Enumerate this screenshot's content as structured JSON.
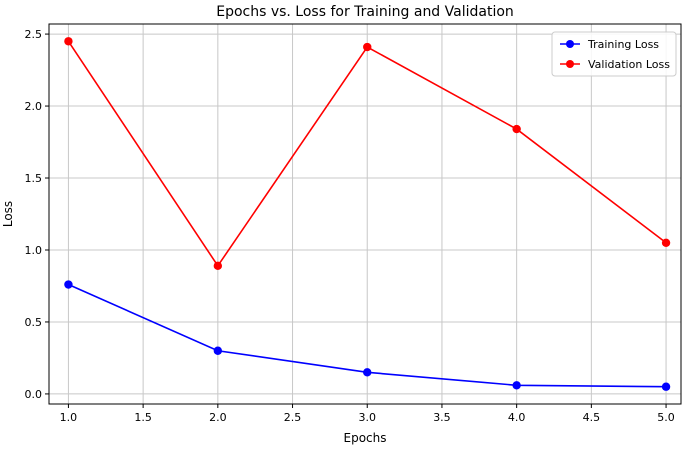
{
  "chart_data": {
    "type": "line",
    "title": "Epochs vs. Loss for Training and Validation",
    "xlabel": "Epochs",
    "ylabel": "Loss",
    "x": [
      1.0,
      2.0,
      3.0,
      4.0,
      5.0
    ],
    "xlim": [
      0.87,
      5.1
    ],
    "ylim": [
      -0.07,
      2.57
    ],
    "xticks": [
      "1.0",
      "1.5",
      "2.0",
      "2.5",
      "3.0",
      "3.5",
      "4.0",
      "4.5",
      "5.0"
    ],
    "yticks": [
      "0.0",
      "0.5",
      "1.0",
      "1.5",
      "2.0",
      "2.5"
    ],
    "grid": true,
    "legend_position": "top-right",
    "series": [
      {
        "name": "Training Loss",
        "color": "#0000ff",
        "values": [
          0.76,
          0.3,
          0.15,
          0.06,
          0.05
        ]
      },
      {
        "name": "Validation Loss",
        "color": "#ff0000",
        "values": [
          2.45,
          0.89,
          2.41,
          1.84,
          1.05
        ]
      }
    ]
  }
}
